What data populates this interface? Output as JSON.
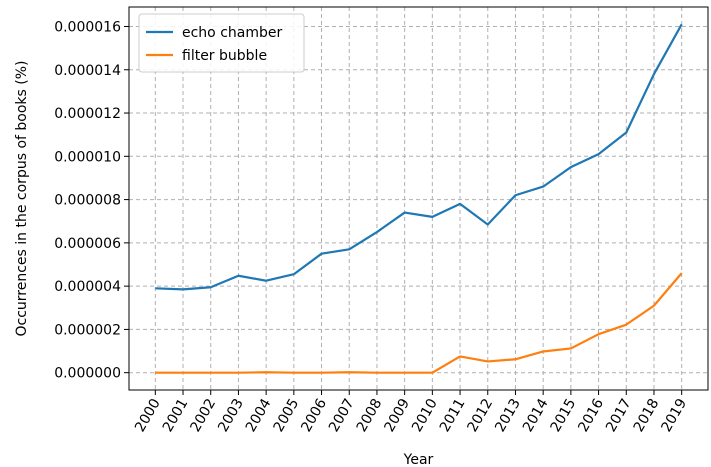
{
  "chart_data": {
    "type": "line",
    "x": [
      2000,
      2001,
      2002,
      2003,
      2004,
      2005,
      2006,
      2007,
      2008,
      2009,
      2010,
      2011,
      2012,
      2013,
      2014,
      2015,
      2016,
      2017,
      2018,
      2019
    ],
    "x_tick_labels": [
      "2000",
      "2001",
      "2002",
      "2003",
      "2004",
      "2005",
      "2006",
      "2007",
      "2008",
      "2009",
      "2010",
      "2011",
      "2012",
      "2013",
      "2014",
      "2015",
      "2016",
      "2017",
      "2018",
      "2019"
    ],
    "series": [
      {
        "name": "echo chamber",
        "color": "#1f77b4",
        "values": [
          3.9e-06,
          3.85e-06,
          3.95e-06,
          4.48e-06,
          4.25e-06,
          4.55e-06,
          5.5e-06,
          5.7e-06,
          6.5e-06,
          7.4e-06,
          7.2e-06,
          7.8e-06,
          6.85e-06,
          8.2e-06,
          8.6e-06,
          9.5e-06,
          1.01e-05,
          1.11e-05,
          1.38e-05,
          1.61e-05
        ]
      },
      {
        "name": "filter bubble",
        "color": "#ff7f0e",
        "values": [
          0.0,
          0.0,
          0.0,
          0.0,
          2e-08,
          0.0,
          0.0,
          2e-08,
          0.0,
          0.0,
          0.0,
          7.5e-07,
          5.2e-07,
          6.2e-07,
          9.8e-07,
          1.12e-06,
          1.78e-06,
          2.22e-06,
          3.1e-06,
          4.6e-06
        ]
      }
    ],
    "y_ticks": [
      0.0,
      2e-06,
      4e-06,
      6e-06,
      8e-06,
      1e-05,
      1.2e-05,
      1.4e-05,
      1.6e-05
    ],
    "y_tick_labels": [
      "0.000000",
      "0.000002",
      "0.000004",
      "0.000006",
      "0.000008",
      "0.000010",
      "0.000012",
      "0.000014",
      "0.000016"
    ],
    "xlabel": "Year",
    "ylabel": "Occurrences in the corpus of books (%)",
    "ylim": [
      -8e-07,
      1.69e-05
    ],
    "xlim": [
      1999.05,
      2019.95
    ],
    "grid": true,
    "legend_position": "top-left"
  }
}
